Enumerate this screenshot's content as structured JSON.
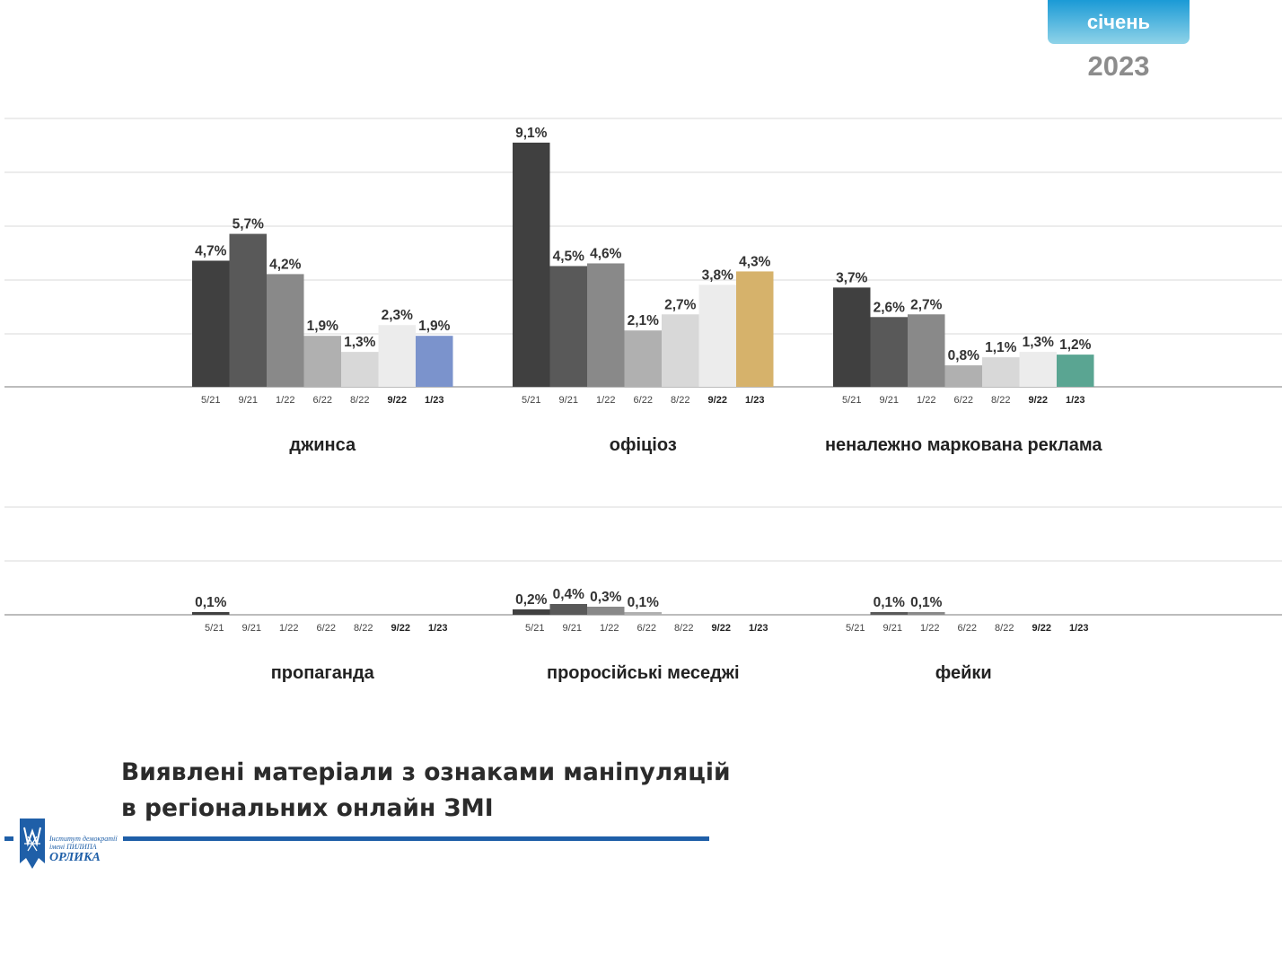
{
  "header": {
    "month": "січень",
    "year": "2023"
  },
  "title_lines": [
    "Виявлені матеріали з ознаками маніпуляцій",
    "в регіональних онлайн ЗМІ"
  ],
  "logo": {
    "line1": "Інститут демократії",
    "line2": "імені ПИЛИПА",
    "line3": "ОРЛИКА"
  },
  "colors": {
    "periods": [
      "#404040",
      "#595959",
      "#898989",
      "#b0b0b0",
      "#d8d8d8",
      "#ececec"
    ],
    "highlight": {
      "джинса": "#7b93cc",
      "офіціоз": "#d6b26b",
      "неналежно маркована реклама": "#5aa592"
    }
  },
  "chart_data": [
    {
      "type": "bar",
      "categories": [
        "5/21",
        "9/21",
        "1/22",
        "6/22",
        "8/22",
        "9/22",
        "1/23"
      ],
      "groups": [
        {
          "name": "джинса",
          "values": [
            4.7,
            5.7,
            4.2,
            1.9,
            1.3,
            2.3,
            1.9
          ],
          "labels": [
            "4,7%",
            "5,7%",
            "4,2%",
            "1,9%",
            "1,3%",
            "2,3%",
            "1,9%"
          ]
        },
        {
          "name": "офіціоз",
          "values": [
            9.1,
            4.5,
            4.6,
            2.1,
            2.7,
            3.8,
            4.3
          ],
          "labels": [
            "9,1%",
            "4,5%",
            "4,6%",
            "2,1%",
            "2,7%",
            "3,8%",
            "4,3%"
          ]
        },
        {
          "name": "неналежно маркована реклама",
          "values": [
            3.7,
            2.6,
            2.7,
            0.8,
            1.1,
            1.3,
            1.2
          ],
          "labels": [
            "3,7%",
            "2,6%",
            "2,7%",
            "0,8%",
            "1,1%",
            "1,3%",
            "1,2%"
          ]
        }
      ],
      "ylim": [
        0,
        10
      ],
      "grid": true,
      "unit": "%"
    },
    {
      "type": "bar",
      "categories": [
        "5/21",
        "9/21",
        "1/22",
        "6/22",
        "8/22",
        "9/22",
        "1/23"
      ],
      "groups": [
        {
          "name": "пропаганда",
          "values": [
            0.1,
            0,
            0,
            0,
            0,
            0,
            0
          ],
          "labels": [
            "0,1%",
            "",
            "",
            "",
            "",
            "",
            ""
          ]
        },
        {
          "name": "проросійські меседжі",
          "values": [
            0.2,
            0.4,
            0.3,
            0.1,
            0,
            0,
            0
          ],
          "labels": [
            "0,2%",
            "0,4%",
            "0,3%",
            "0,1%",
            "",
            "",
            ""
          ]
        },
        {
          "name": "фейки",
          "values": [
            0,
            0.1,
            0.1,
            0,
            0,
            0,
            0
          ],
          "labels": [
            "",
            "0,1%",
            "0,1%",
            "",
            "",
            "",
            ""
          ]
        }
      ],
      "ylim": [
        0,
        2
      ],
      "grid": true,
      "unit": "%"
    }
  ]
}
